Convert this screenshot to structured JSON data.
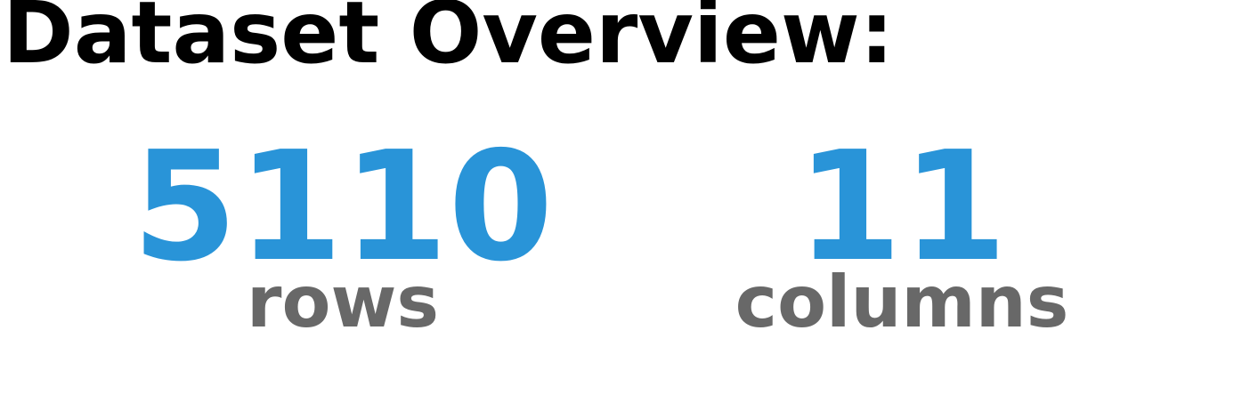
{
  "title": "Dataset Overview:",
  "stats": [
    {
      "value": "5110",
      "label": "rows"
    },
    {
      "value": "11",
      "label": "columns"
    }
  ],
  "colors": {
    "value": "#2994d8",
    "label": "#686868",
    "title": "#000000",
    "background": "#ffffff"
  }
}
